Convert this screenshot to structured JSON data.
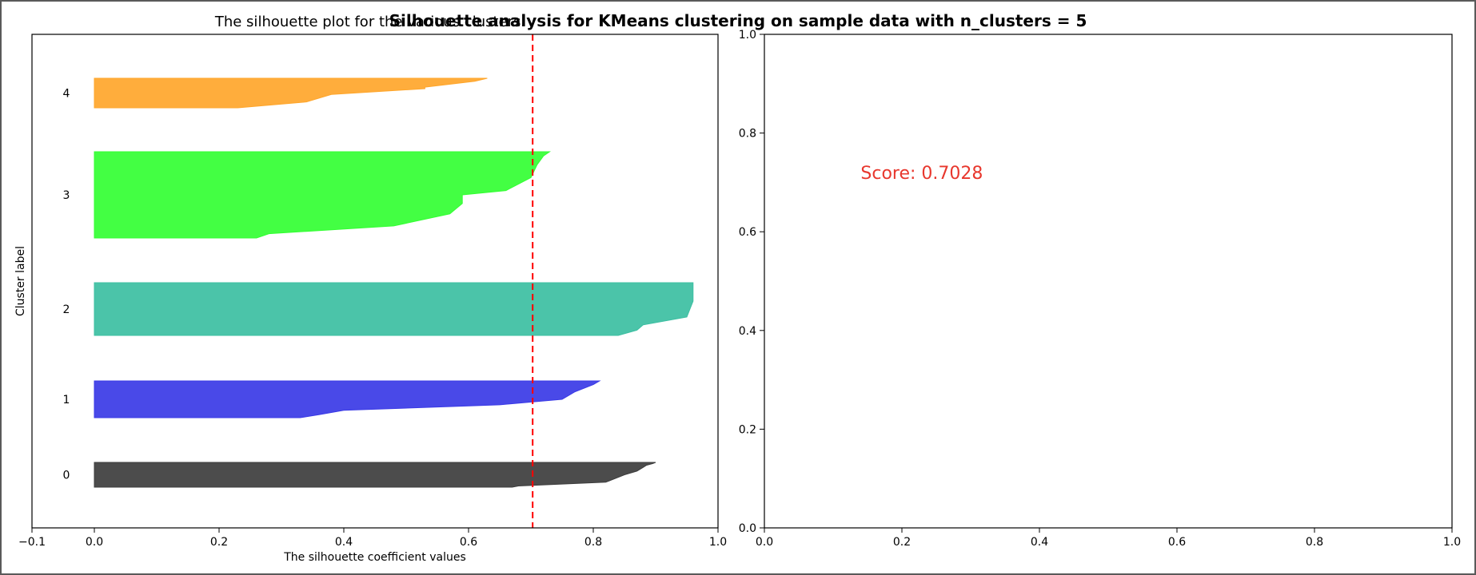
{
  "suptitle": "Silhouette analysis for KMeans clustering on sample data with n_clusters = 5",
  "chart_data": [
    {
      "type": "area",
      "title": "The silhouette plot for the various clusters.",
      "xlabel": "The silhouette coefficient values",
      "ylabel": "Cluster label",
      "xlim": [
        -0.1,
        1.0
      ],
      "xticks": [
        "−0.1",
        "0.0",
        "0.2",
        "0.4",
        "0.6",
        "0.8",
        "1.0"
      ],
      "xtick_values": [
        -0.1,
        0.0,
        0.2,
        0.4,
        0.6,
        0.8,
        1.0
      ],
      "average_silhouette": 0.7028,
      "average_line_color": "#ff0000",
      "clusters": [
        {
          "label": "0",
          "color": "#3d3d3d",
          "profile": [
            [
              0,
              0.9
            ],
            [
              0.05,
              0.895
            ],
            [
              0.12,
              0.885
            ],
            [
              0.2,
              0.88
            ],
            [
              0.35,
              0.87
            ],
            [
              0.5,
              0.85
            ],
            [
              0.8,
              0.82
            ],
            [
              0.95,
              0.68
            ],
            [
              1,
              0.67
            ]
          ]
        },
        {
          "label": "1",
          "color": "#3a3ae6",
          "profile": [
            [
              0,
              0.81
            ],
            [
              0.1,
              0.8
            ],
            [
              0.3,
              0.77
            ],
            [
              0.5,
              0.75
            ],
            [
              0.65,
              0.65
            ],
            [
              0.8,
              0.4
            ],
            [
              0.92,
              0.36
            ],
            [
              1,
              0.33
            ]
          ]
        },
        {
          "label": "2",
          "color": "#3cbfa2",
          "profile": [
            [
              0,
              0.96
            ],
            [
              0.35,
              0.96
            ],
            [
              0.5,
              0.955
            ],
            [
              0.65,
              0.95
            ],
            [
              0.8,
              0.88
            ],
            [
              0.9,
              0.87
            ],
            [
              1,
              0.84
            ]
          ]
        },
        {
          "label": "3",
          "color": "#33ff33",
          "profile": [
            [
              0,
              0.73
            ],
            [
              0.05,
              0.72
            ],
            [
              0.15,
              0.71
            ],
            [
              0.3,
              0.7
            ],
            [
              0.45,
              0.66
            ],
            [
              0.5,
              0.59
            ],
            [
              0.6,
              0.59
            ],
            [
              0.72,
              0.57
            ],
            [
              0.86,
              0.48
            ],
            [
              0.95,
              0.28
            ],
            [
              1,
              0.26
            ]
          ]
        },
        {
          "label": "4",
          "color": "#ffa62b",
          "profile": [
            [
              0,
              0.63
            ],
            [
              0.1,
              0.61
            ],
            [
              0.3,
              0.53
            ],
            [
              0.35,
              0.53
            ],
            [
              0.55,
              0.38
            ],
            [
              0.8,
              0.34
            ],
            [
              1,
              0.23
            ]
          ]
        }
      ]
    },
    {
      "type": "scatter",
      "xlim": [
        0.0,
        1.0
      ],
      "ylim": [
        0.0,
        1.0
      ],
      "xticks": [
        "0.0",
        "0.2",
        "0.4",
        "0.6",
        "0.8",
        "1.0"
      ],
      "xtick_values": [
        0.0,
        0.2,
        0.4,
        0.6,
        0.8,
        1.0
      ],
      "yticks": [
        "0.0",
        "0.2",
        "0.4",
        "0.6",
        "0.8",
        "1.0"
      ],
      "ytick_values": [
        0.0,
        0.2,
        0.4,
        0.6,
        0.8,
        1.0
      ],
      "annotation": {
        "text": "Score: 0.7028",
        "x": 0.14,
        "y": 0.72,
        "color": "#e8372d"
      }
    }
  ]
}
